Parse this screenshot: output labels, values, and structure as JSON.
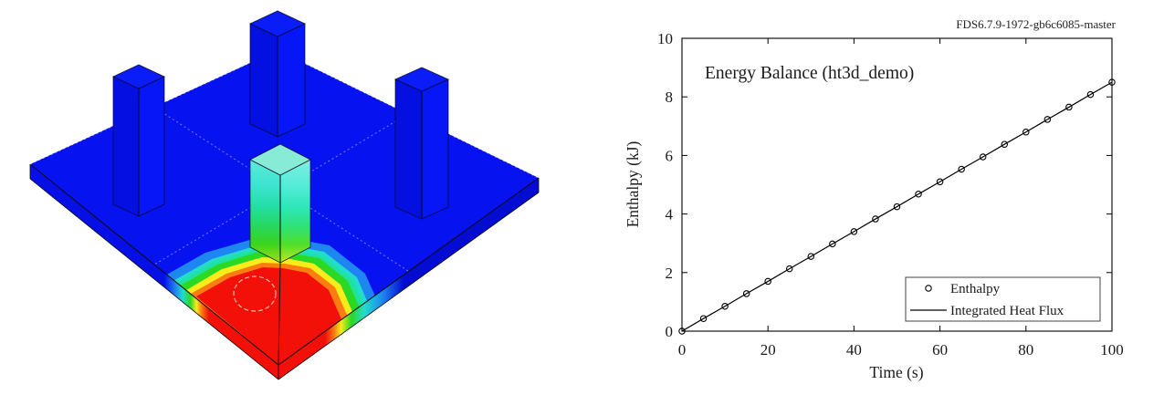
{
  "figure": {
    "background": "#ffffff"
  },
  "left_panel": {
    "name": "3d-heat-transfer-rendering",
    "description": "Smokeview-style 3D rendering of a square plate with four square pillars; front quadrant heated red with rainbow transition bands, center pillar heated green-to-cyan",
    "colors": {
      "plate_cold": "#0712f0",
      "plate_side_left": "#0610e6",
      "plate_side_right": "#040cd2",
      "hot_core": "#f21009",
      "band_orange": "#fc7e11",
      "band_yellow": "#f8ec1b",
      "band_green": "#2bd824",
      "band_spring": "#1fe2a0",
      "band_cyan": "#22dccc",
      "band_light_blue": "#1e86f0",
      "pillar_blue_left_face": "#0410e2",
      "pillar_blue_right_face": "#0616f6",
      "pillar_blue_cap": "#0a1cf8",
      "heated_pillar_base": "#9fe01a",
      "heated_pillar_mid": "#24dfa6",
      "heated_pillar_top": "#5fe9da",
      "heated_pillar_cap": "#87ebd6",
      "device_ring": "#ffd2bc",
      "edge_line": "#0a0a0a"
    }
  },
  "chart": {
    "version_label": "FDS6.7.9-1972-gb6c6085-master"
  },
  "chart_data": {
    "type": "line",
    "title": "Energy Balance  (ht3d_demo)",
    "xlabel": "Time (s)",
    "ylabel": "Enthalpy (kJ)",
    "xlim": [
      0,
      100
    ],
    "ylim": [
      0,
      10
    ],
    "xticks": [
      0,
      20,
      40,
      60,
      80,
      100
    ],
    "yticks": [
      0,
      2,
      4,
      6,
      8,
      10
    ],
    "grid": false,
    "legend_position": "lower right",
    "axis_color": "#000000",
    "x": [
      0,
      5,
      10,
      15,
      20,
      25,
      30,
      35,
      40,
      45,
      50,
      55,
      60,
      65,
      70,
      75,
      80,
      85,
      90,
      95,
      100
    ],
    "series": [
      {
        "name": "Enthalpy",
        "style": "marker",
        "marker": "o",
        "color": "#000000",
        "values": [
          0,
          0.43,
          0.85,
          1.28,
          1.7,
          2.13,
          2.55,
          2.98,
          3.4,
          3.83,
          4.25,
          4.68,
          5.1,
          5.53,
          5.95,
          6.38,
          6.8,
          7.23,
          7.65,
          8.08,
          8.5
        ]
      },
      {
        "name": "Integrated Heat Flux",
        "style": "line",
        "color": "#000000",
        "values": [
          0,
          0.43,
          0.85,
          1.28,
          1.7,
          2.13,
          2.55,
          2.98,
          3.4,
          3.83,
          4.25,
          4.68,
          5.1,
          5.53,
          5.95,
          6.38,
          6.8,
          7.23,
          7.65,
          8.08,
          8.5
        ]
      }
    ]
  }
}
